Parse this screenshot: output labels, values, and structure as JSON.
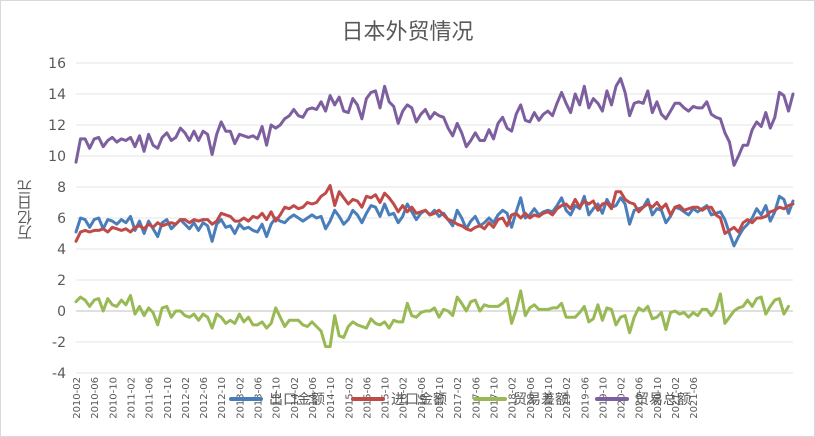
{
  "chart_data": {
    "type": "line",
    "title": "日本外贸情况",
    "xlabel": "",
    "ylabel": "万亿日元",
    "ylim": [
      -4,
      16
    ],
    "yticks": [
      "-4",
      "-2",
      "0",
      "2",
      "4",
      "6",
      "8",
      "10",
      "12",
      "14",
      "16"
    ],
    "grid": true,
    "legend_position": "bottom",
    "x_tick_labels": [
      "2010-02",
      "2010-06",
      "2010-10",
      "2011-02",
      "2011-06",
      "2011-10",
      "2012-02",
      "2012-06",
      "2012-10",
      "2013-02",
      "2013-06",
      "2013-10",
      "2014-02",
      "2014-06",
      "2014-10",
      "2015-02",
      "2015-06",
      "2015-10",
      "2016-02",
      "2016-06",
      "2016-10",
      "2017-02",
      "2017-06",
      "2017-10",
      "2018-02",
      "2018-06",
      "2018-10",
      "2019-02",
      "2019-06",
      "2019-10",
      "2020-02",
      "2020-06",
      "2020-10",
      "2021-02",
      "2021-06"
    ],
    "series": [
      {
        "name": "出口金额",
        "color": "#4a7ebb",
        "values": [
          5.1,
          6.0,
          5.9,
          5.4,
          5.9,
          6.0,
          5.3,
          5.9,
          5.8,
          5.6,
          5.9,
          5.7,
          6.1,
          5.2,
          5.8,
          5.0,
          5.8,
          5.3,
          4.8,
          5.7,
          5.9,
          5.3,
          5.6,
          5.9,
          5.6,
          5.3,
          5.7,
          5.2,
          5.7,
          5.5,
          4.5,
          5.6,
          5.9,
          5.4,
          5.5,
          5.0,
          5.6,
          5.3,
          5.4,
          5.2,
          5.1,
          5.6,
          4.8,
          5.6,
          6.0,
          5.8,
          5.7,
          6.0,
          6.2,
          6.0,
          5.8,
          6.0,
          6.2,
          6.0,
          6.1,
          5.3,
          5.8,
          6.5,
          6.1,
          5.6,
          5.9,
          6.5,
          6.2,
          5.7,
          6.3,
          6.8,
          6.7,
          6.1,
          6.9,
          6.2,
          6.3,
          5.7,
          6.1,
          6.9,
          6.4,
          5.9,
          6.3,
          6.5,
          6.2,
          6.5,
          6.1,
          6.3,
          5.9,
          5.5,
          6.5,
          6.0,
          5.3,
          5.8,
          6.1,
          5.5,
          5.7,
          6.0,
          5.7,
          6.2,
          6.5,
          6.3,
          5.4,
          6.4,
          7.3,
          6.0,
          6.2,
          6.6,
          6.2,
          6.4,
          6.5,
          6.4,
          6.8,
          7.3,
          6.5,
          6.2,
          6.8,
          6.6,
          7.4,
          6.2,
          6.6,
          6.9,
          6.3,
          7.2,
          6.7,
          6.8,
          7.3,
          6.9,
          5.6,
          6.5,
          6.6,
          6.7,
          7.2,
          6.2,
          6.6,
          6.5,
          5.7,
          6.1,
          6.7,
          6.6,
          6.4,
          6.2,
          6.6,
          6.4,
          6.6,
          6.8,
          6.2,
          6.3,
          6.4,
          5.9,
          5.0,
          4.2,
          4.8,
          5.3,
          5.6,
          6.0,
          6.6,
          6.2,
          6.8,
          5.8,
          6.4,
          7.4,
          7.2,
          6.3,
          7.1
        ]
      },
      {
        "name": "进口金额",
        "color": "#be4b48",
        "values": [
          4.5,
          5.1,
          5.2,
          5.1,
          5.2,
          5.2,
          5.3,
          5.1,
          5.4,
          5.3,
          5.2,
          5.3,
          5.1,
          5.4,
          5.5,
          5.3,
          5.6,
          5.4,
          5.7,
          5.5,
          5.6,
          5.7,
          5.6,
          5.9,
          5.9,
          5.7,
          5.9,
          5.8,
          5.9,
          5.9,
          5.6,
          5.8,
          6.3,
          6.2,
          6.1,
          5.8,
          5.8,
          6.0,
          5.8,
          6.1,
          6.0,
          6.3,
          5.9,
          6.4,
          5.8,
          6.2,
          6.7,
          6.6,
          6.8,
          6.6,
          6.7,
          7.0,
          6.9,
          7.0,
          7.4,
          7.6,
          8.1,
          6.8,
          7.7,
          7.3,
          6.9,
          7.2,
          7.1,
          6.7,
          7.4,
          7.3,
          7.5,
          7.0,
          7.6,
          7.3,
          6.9,
          6.4,
          6.8,
          6.4,
          6.7,
          6.3,
          6.4,
          6.5,
          6.2,
          6.3,
          6.5,
          6.2,
          5.9,
          5.8,
          5.6,
          5.5,
          5.3,
          5.2,
          5.4,
          5.5,
          5.3,
          5.7,
          5.4,
          5.9,
          6.0,
          5.5,
          6.2,
          6.3,
          6.0,
          6.3,
          6.0,
          6.2,
          6.1,
          6.3,
          6.4,
          6.2,
          6.6,
          6.8,
          6.9,
          6.6,
          7.2,
          6.7,
          7.1,
          6.9,
          7.1,
          6.5,
          6.9,
          7.0,
          6.6,
          7.7,
          7.7,
          7.2,
          7.0,
          6.9,
          6.4,
          6.7,
          6.9,
          6.7,
          7.0,
          6.6,
          6.9,
          6.2,
          6.7,
          6.8,
          6.5,
          6.6,
          6.7,
          6.7,
          6.5,
          6.7,
          6.7,
          6.2,
          6.0,
          5.0,
          5.2,
          5.4,
          5.1,
          5.7,
          5.9,
          5.7,
          6.0,
          6.0,
          6.1,
          6.4,
          6.5,
          6.7,
          6.6,
          6.8,
          6.9
        ]
      },
      {
        "name": "贸易差额",
        "color": "#98b954",
        "values": [
          0.6,
          0.9,
          0.7,
          0.3,
          0.7,
          0.8,
          0.0,
          0.8,
          0.4,
          0.3,
          0.7,
          0.4,
          1.0,
          -0.2,
          0.3,
          -0.3,
          0.2,
          -0.1,
          -0.9,
          0.2,
          0.3,
          -0.4,
          0.0,
          0.0,
          -0.3,
          -0.4,
          -0.2,
          -0.6,
          -0.2,
          -0.4,
          -1.1,
          -0.2,
          -0.4,
          -0.8,
          -0.6,
          -0.8,
          -0.2,
          -0.7,
          -0.4,
          -0.9,
          -0.9,
          -0.7,
          -1.1,
          -0.8,
          0.2,
          -0.4,
          -1.0,
          -0.6,
          -0.6,
          -0.6,
          -0.9,
          -1.0,
          -0.7,
          -1.0,
          -1.3,
          -2.3,
          -2.3,
          -0.3,
          -1.6,
          -1.7,
          -1.0,
          -0.7,
          -0.9,
          -1.0,
          -1.1,
          -0.5,
          -0.8,
          -0.9,
          -0.7,
          -1.1,
          -0.6,
          -0.7,
          -0.7,
          0.5,
          -0.3,
          -0.4,
          -0.1,
          0.0,
          0.0,
          0.2,
          -0.4,
          0.1,
          0.0,
          -0.3,
          0.9,
          0.5,
          0.0,
          0.6,
          0.7,
          0.0,
          0.4,
          0.3,
          0.3,
          0.3,
          0.5,
          0.8,
          -0.8,
          0.1,
          1.3,
          -0.3,
          0.2,
          0.4,
          0.1,
          0.1,
          0.1,
          0.2,
          0.2,
          0.5,
          -0.4,
          -0.4,
          -0.4,
          -0.1,
          0.3,
          -0.7,
          -0.5,
          0.4,
          -0.6,
          0.2,
          0.1,
          -0.9,
          -0.4,
          -0.3,
          -1.4,
          -0.4,
          0.2,
          0.0,
          0.3,
          -0.5,
          -0.4,
          -0.1,
          -1.2,
          -0.1,
          0.0,
          -0.2,
          -0.1,
          -0.4,
          -0.1,
          -0.3,
          0.1,
          0.1,
          -0.3,
          0.1,
          1.1,
          -0.8,
          -0.4,
          0.0,
          0.2,
          0.3,
          0.7,
          0.3,
          0.8,
          0.9,
          -0.2,
          0.3,
          0.7,
          0.8,
          -0.2,
          0.3
        ]
      },
      {
        "name": "贸易总额",
        "color": "#7d5fa0",
        "values": [
          9.6,
          11.1,
          11.1,
          10.5,
          11.1,
          11.2,
          10.6,
          11.0,
          11.2,
          10.9,
          11.1,
          11.0,
          11.2,
          10.6,
          11.3,
          10.3,
          11.4,
          10.7,
          10.5,
          11.2,
          11.5,
          11.0,
          11.2,
          11.8,
          11.5,
          11.0,
          11.6,
          11.0,
          11.6,
          11.4,
          10.1,
          11.4,
          12.2,
          11.6,
          11.6,
          10.8,
          11.4,
          11.3,
          11.2,
          11.3,
          11.1,
          11.9,
          10.7,
          12.0,
          11.8,
          12.0,
          12.4,
          12.6,
          13.0,
          12.6,
          12.5,
          13.0,
          13.1,
          13.0,
          13.5,
          12.9,
          13.9,
          13.3,
          13.8,
          12.9,
          12.8,
          13.7,
          13.3,
          12.4,
          13.7,
          14.1,
          14.2,
          13.1,
          14.5,
          13.5,
          13.2,
          12.1,
          12.9,
          13.3,
          13.1,
          12.2,
          12.7,
          13.0,
          12.4,
          12.8,
          12.6,
          12.5,
          11.8,
          11.3,
          12.1,
          11.5,
          10.6,
          11.0,
          11.5,
          11.0,
          11.0,
          11.7,
          11.1,
          12.1,
          12.5,
          11.8,
          11.6,
          12.7,
          13.3,
          12.3,
          12.2,
          12.8,
          12.3,
          12.7,
          12.9,
          12.6,
          13.4,
          14.1,
          13.4,
          12.8,
          14.0,
          13.3,
          14.5,
          13.1,
          13.7,
          13.4,
          12.9,
          14.2,
          13.3,
          14.5,
          15.0,
          14.1,
          12.6,
          13.4,
          13.5,
          13.4,
          14.2,
          12.8,
          13.5,
          12.7,
          12.4,
          12.9,
          13.4,
          13.4,
          13.1,
          12.9,
          13.2,
          13.1,
          13.1,
          13.5,
          12.7,
          12.5,
          12.4,
          11.5,
          10.9,
          9.4,
          10.0,
          10.7,
          10.7,
          11.7,
          12.2,
          11.9,
          12.8,
          11.8,
          12.5,
          14.1,
          13.9,
          12.9,
          14.0
        ]
      }
    ]
  }
}
